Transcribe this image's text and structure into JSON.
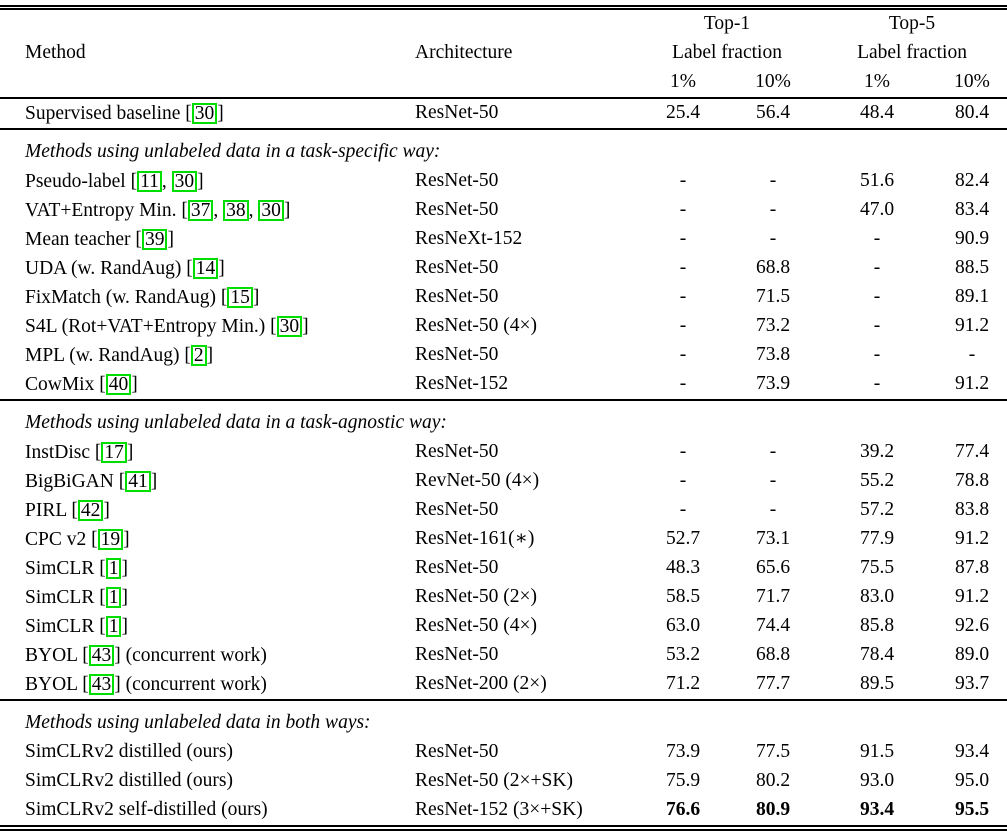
{
  "theme": {
    "background": "#ffffff",
    "text": "#000000",
    "rule": "#000000",
    "cite_box": "#00dd00"
  },
  "table": {
    "columns": {
      "method": "Method",
      "architecture": "Architecture"
    },
    "groups": [
      {
        "title": "Top-1",
        "subtitle": "Label fraction",
        "cols": [
          "1%",
          "10%"
        ]
      },
      {
        "title": "Top-5",
        "subtitle": "Label fraction",
        "cols": [
          "1%",
          "10%"
        ]
      }
    ],
    "rows": [
      {
        "type": "data",
        "method": [
          {
            "t": "Supervised baseline ["
          },
          {
            "cite": "30"
          },
          {
            "t": "]"
          }
        ],
        "arch": "ResNet-50",
        "vals": [
          "25.4",
          "56.4",
          "48.4",
          "80.4"
        ],
        "rule_below": true
      },
      {
        "type": "section",
        "label": "Methods using unlabeled data in a task-specific way:"
      },
      {
        "type": "data",
        "method": [
          {
            "t": "Pseudo-label ["
          },
          {
            "cite": "11"
          },
          {
            "t": ", "
          },
          {
            "cite": "30"
          },
          {
            "t": "]"
          }
        ],
        "arch": "ResNet-50",
        "vals": [
          "-",
          "-",
          "51.6",
          "82.4"
        ]
      },
      {
        "type": "data",
        "method": [
          {
            "t": "VAT+Entropy Min. ["
          },
          {
            "cite": "37"
          },
          {
            "t": ", "
          },
          {
            "cite": "38"
          },
          {
            "t": ", "
          },
          {
            "cite": "30"
          },
          {
            "t": "]"
          }
        ],
        "arch": "ResNet-50",
        "vals": [
          "-",
          "-",
          "47.0",
          "83.4"
        ]
      },
      {
        "type": "data",
        "method": [
          {
            "t": "Mean teacher ["
          },
          {
            "cite": "39"
          },
          {
            "t": "]"
          }
        ],
        "arch": "ResNeXt-152",
        "vals": [
          "-",
          "-",
          "-",
          "90.9"
        ]
      },
      {
        "type": "data",
        "method": [
          {
            "t": "UDA (w. RandAug) ["
          },
          {
            "cite": "14"
          },
          {
            "t": "]"
          }
        ],
        "arch": "ResNet-50",
        "vals": [
          "-",
          "68.8",
          "-",
          "88.5"
        ]
      },
      {
        "type": "data",
        "method": [
          {
            "t": "FixMatch (w. RandAug) ["
          },
          {
            "cite": "15"
          },
          {
            "t": "]"
          }
        ],
        "arch": "ResNet-50",
        "vals": [
          "-",
          "71.5",
          "-",
          "89.1"
        ]
      },
      {
        "type": "data",
        "method": [
          {
            "t": "S4L (Rot+VAT+Entropy Min.) ["
          },
          {
            "cite": "30"
          },
          {
            "t": "]"
          }
        ],
        "arch": "ResNet-50 (4×)",
        "vals": [
          "-",
          "73.2",
          "-",
          "91.2"
        ]
      },
      {
        "type": "data",
        "method": [
          {
            "t": "MPL (w. RandAug) ["
          },
          {
            "cite": "2"
          },
          {
            "t": "]"
          }
        ],
        "arch": "ResNet-50",
        "vals": [
          "-",
          "73.8",
          "-",
          "-"
        ]
      },
      {
        "type": "data",
        "method": [
          {
            "t": "CowMix ["
          },
          {
            "cite": "40"
          },
          {
            "t": "]"
          }
        ],
        "arch": "ResNet-152",
        "vals": [
          "-",
          "73.9",
          "-",
          "91.2"
        ],
        "rule_below": true
      },
      {
        "type": "section",
        "label": "Methods using unlabeled data in a task-agnostic way:"
      },
      {
        "type": "data",
        "method": [
          {
            "t": "InstDisc ["
          },
          {
            "cite": "17"
          },
          {
            "t": "]"
          }
        ],
        "arch": "ResNet-50",
        "vals": [
          "-",
          "-",
          "39.2",
          "77.4"
        ]
      },
      {
        "type": "data",
        "method": [
          {
            "t": "BigBiGAN ["
          },
          {
            "cite": "41"
          },
          {
            "t": "]"
          }
        ],
        "arch": "RevNet-50 (4×)",
        "vals": [
          "-",
          "-",
          "55.2",
          "78.8"
        ]
      },
      {
        "type": "data",
        "method": [
          {
            "t": "PIRL ["
          },
          {
            "cite": "42"
          },
          {
            "t": "]"
          }
        ],
        "arch": "ResNet-50",
        "vals": [
          "-",
          "-",
          "57.2",
          "83.8"
        ]
      },
      {
        "type": "data",
        "method": [
          {
            "t": "CPC v2 ["
          },
          {
            "cite": "19"
          },
          {
            "t": "]"
          }
        ],
        "arch": "ResNet-161(∗)",
        "vals": [
          "52.7",
          "73.1",
          "77.9",
          "91.2"
        ]
      },
      {
        "type": "data",
        "method": [
          {
            "t": "SimCLR ["
          },
          {
            "cite": "1"
          },
          {
            "t": "]"
          }
        ],
        "arch": "ResNet-50",
        "vals": [
          "48.3",
          "65.6",
          "75.5",
          "87.8"
        ]
      },
      {
        "type": "data",
        "method": [
          {
            "t": "SimCLR ["
          },
          {
            "cite": "1"
          },
          {
            "t": "]"
          }
        ],
        "arch": "ResNet-50 (2×)",
        "vals": [
          "58.5",
          "71.7",
          "83.0",
          "91.2"
        ]
      },
      {
        "type": "data",
        "method": [
          {
            "t": "SimCLR ["
          },
          {
            "cite": "1"
          },
          {
            "t": "]"
          }
        ],
        "arch": "ResNet-50 (4×)",
        "vals": [
          "63.0",
          "74.4",
          "85.8",
          "92.6"
        ]
      },
      {
        "type": "data",
        "method": [
          {
            "t": "BYOL ["
          },
          {
            "cite": "43"
          },
          {
            "t": "] (concurrent work)"
          }
        ],
        "arch": "ResNet-50",
        "vals": [
          "53.2",
          "68.8",
          "78.4",
          "89.0"
        ]
      },
      {
        "type": "data",
        "method": [
          {
            "t": "BYOL ["
          },
          {
            "cite": "43"
          },
          {
            "t": "] (concurrent work)"
          }
        ],
        "arch": "ResNet-200 (2×)",
        "vals": [
          "71.2",
          "77.7",
          "89.5",
          "93.7"
        ],
        "rule_below": true
      },
      {
        "type": "section",
        "label": "Methods using unlabeled data in both ways:"
      },
      {
        "type": "data",
        "method": [
          {
            "t": "SimCLRv2 distilled (ours)"
          }
        ],
        "arch": "ResNet-50",
        "vals": [
          "73.9",
          "77.5",
          "91.5",
          "93.4"
        ]
      },
      {
        "type": "data",
        "method": [
          {
            "t": "SimCLRv2 distilled (ours)"
          }
        ],
        "arch": "ResNet-50 (2×+SK)",
        "vals": [
          "75.9",
          "80.2",
          "93.0",
          "95.0"
        ]
      },
      {
        "type": "data",
        "method": [
          {
            "t": "SimCLRv2 self-distilled (ours)"
          }
        ],
        "arch": "ResNet-152 (3×+SK)",
        "vals": [
          "76.6",
          "80.9",
          "93.4",
          "95.5"
        ],
        "bold_vals": true
      }
    ]
  }
}
